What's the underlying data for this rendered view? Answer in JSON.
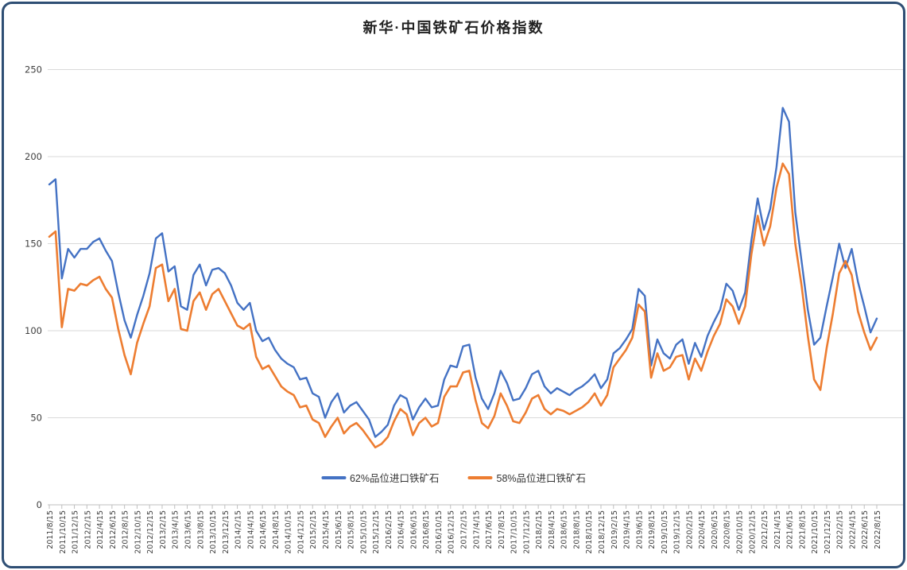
{
  "chart_data": {
    "type": "line",
    "title": "新华·中国铁矿石价格指数",
    "grid": "horizontal",
    "legend_position": "bottom-center",
    "ylim": [
      0,
      250
    ],
    "y_ticks": [
      0,
      50,
      100,
      150,
      200,
      250
    ],
    "sampling": "monthly (each series has one value per month from 2011/8 to 2022/8; axis labels shown every 2 months)",
    "x_start": "2011/8/15",
    "x_end": "2022/8/15",
    "x_tick_labels": [
      "2011/8/15",
      "2011/10/15",
      "2011/12/15",
      "2012/2/15",
      "2012/4/15",
      "2012/6/15",
      "2012/8/15",
      "2012/10/15",
      "2012/12/15",
      "2013/2/15",
      "2013/4/15",
      "2013/6/15",
      "2013/8/15",
      "2013/10/15",
      "2013/12/15",
      "2014/2/15",
      "2014/4/15",
      "2014/6/15",
      "2014/8/15",
      "2014/10/15",
      "2014/12/15",
      "2015/2/15",
      "2015/4/15",
      "2015/6/15",
      "2015/8/15",
      "2015/10/15",
      "2015/12/15",
      "2016/2/15",
      "2016/4/15",
      "2016/6/15",
      "2016/8/15",
      "2016/10/15",
      "2016/12/15",
      "2017/2/15",
      "2017/4/15",
      "2017/6/15",
      "2017/8/15",
      "2017/10/15",
      "2017/12/15",
      "2018/2/15",
      "2018/4/15",
      "2018/6/15",
      "2018/8/15",
      "2018/10/15",
      "2018/12/15",
      "2019/2/15",
      "2019/4/15",
      "2019/6/15",
      "2019/8/15",
      "2019/10/15",
      "2019/12/15",
      "2020/2/15",
      "2020/4/15",
      "2020/6/15",
      "2020/8/15",
      "2020/10/15",
      "2020/12/15",
      "2021/2/15",
      "2021/4/15",
      "2021/6/15",
      "2021/8/15",
      "2021/10/15",
      "2021/12/15",
      "2022/2/15",
      "2022/4/15",
      "2022/6/15",
      "2022/8/15"
    ],
    "series": [
      {
        "name": "62%品位进口铁矿石",
        "color": "#4472c4",
        "values": [
          184,
          187,
          130,
          147,
          142,
          147,
          147,
          151,
          153,
          146,
          140,
          122,
          106,
          96,
          109,
          120,
          133,
          153,
          156,
          134,
          137,
          114,
          112,
          132,
          138,
          126,
          135,
          136,
          133,
          126,
          116,
          112,
          116,
          100,
          94,
          96,
          89,
          84,
          81,
          79,
          72,
          73,
          64,
          62,
          50,
          59,
          64,
          53,
          57,
          59,
          54,
          49,
          39,
          42,
          46,
          57,
          63,
          61,
          49,
          56,
          61,
          56,
          57,
          72,
          80,
          79,
          91,
          92,
          73,
          61,
          55,
          64,
          77,
          70,
          60,
          61,
          67,
          75,
          77,
          68,
          64,
          67,
          65,
          63,
          66,
          68,
          71,
          75,
          67,
          72,
          87,
          90,
          95,
          101,
          124,
          120,
          80,
          95,
          87,
          84,
          92,
          95,
          81,
          93,
          85,
          97,
          105,
          112,
          127,
          123,
          112,
          122,
          152,
          176,
          158,
          170,
          194,
          228,
          220,
          168,
          140,
          112,
          92,
          96,
          114,
          131,
          150,
          136,
          147,
          128,
          114,
          99,
          107
        ]
      },
      {
        "name": "58%品位进口铁矿石",
        "color": "#ed7d31",
        "values": [
          154,
          157,
          102,
          124,
          123,
          127,
          126,
          129,
          131,
          124,
          119,
          101,
          86,
          75,
          93,
          104,
          114,
          136,
          138,
          117,
          124,
          101,
          100,
          117,
          122,
          112,
          121,
          124,
          117,
          110,
          103,
          101,
          104,
          85,
          78,
          80,
          74,
          68,
          65,
          63,
          56,
          57,
          49,
          47,
          39,
          45,
          50,
          41,
          45,
          47,
          43,
          38,
          33,
          35,
          39,
          48,
          55,
          52,
          40,
          47,
          50,
          45,
          47,
          62,
          68,
          68,
          76,
          77,
          60,
          47,
          44,
          51,
          64,
          57,
          48,
          47,
          53,
          61,
          63,
          55,
          52,
          55,
          54,
          52,
          54,
          56,
          59,
          64,
          57,
          63,
          79,
          84,
          89,
          96,
          115,
          111,
          73,
          87,
          77,
          79,
          85,
          86,
          72,
          84,
          77,
          88,
          97,
          104,
          118,
          114,
          104,
          114,
          144,
          166,
          149,
          160,
          182,
          196,
          190,
          150,
          126,
          97,
          72,
          66,
          90,
          110,
          133,
          140,
          132,
          111,
          99,
          89,
          96
        ]
      }
    ],
    "axis_colors": {
      "grid": "#d9d9d9",
      "axis": "#bfbfbf",
      "tick_label": "#404040"
    }
  }
}
